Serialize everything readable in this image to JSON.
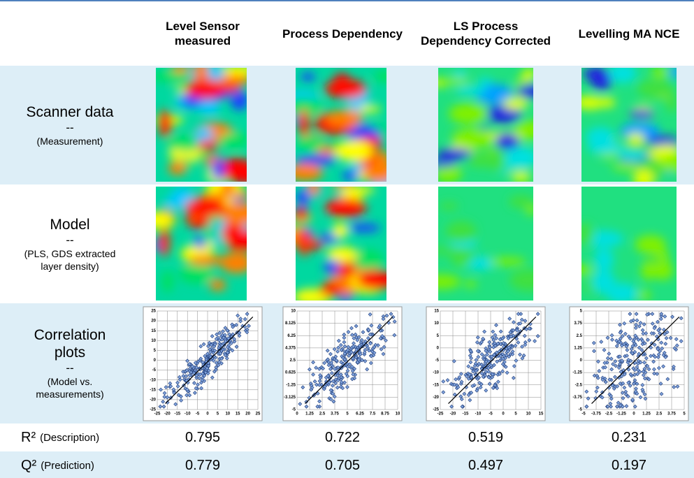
{
  "header": {
    "columns": [
      "Level Sensor measured",
      "Process Dependency",
      "LS Process Dependency Corrected",
      "Levelling MA NCE"
    ]
  },
  "rows": [
    {
      "title": "Scanner data",
      "separator": "--",
      "note": "(Measurement)"
    },
    {
      "title": "Model",
      "separator": "--",
      "note": "(PLS, GDS extracted layer density)"
    },
    {
      "title": "Correlation plots",
      "separator": "--",
      "note": "(Model vs. measurements)"
    }
  ],
  "plots": [
    {
      "xticks": [
        -25,
        -20,
        -15,
        -10,
        -5,
        0,
        5,
        10,
        15,
        20,
        25
      ],
      "yticks": [
        -25,
        -20,
        -15,
        -10,
        -5,
        0,
        5,
        10,
        15,
        20,
        25
      ]
    },
    {
      "xticks": [
        0,
        1.25,
        2.5,
        3.75,
        5,
        6.25,
        7.5,
        8.75,
        10
      ],
      "yticks": [
        -5,
        -3.125,
        -1.25,
        0.625,
        2.5,
        4.375,
        6.25,
        8.125,
        10
      ]
    },
    {
      "xticks": [
        -25,
        -20,
        -15,
        -10,
        -5,
        0,
        5,
        10,
        15
      ],
      "yticks": [
        -25,
        -20,
        -15,
        -10,
        -5,
        0,
        5,
        10,
        15
      ]
    },
    {
      "xticks": [
        -5,
        -3.75,
        -2.5,
        -1.25,
        0,
        1.25,
        2.5,
        3.75,
        5
      ],
      "yticks": [
        -5,
        -3.75,
        -2.5,
        -1.25,
        0,
        1.25,
        2.5,
        3.75,
        5
      ]
    }
  ],
  "metrics": [
    {
      "symbol": "R²",
      "note": "(Description)",
      "values": [
        0.795,
        0.722,
        0.519,
        0.231
      ]
    },
    {
      "symbol": "Q²",
      "note": "(Prediction)",
      "values": [
        0.779,
        0.705,
        0.497,
        0.197
      ]
    }
  ]
}
